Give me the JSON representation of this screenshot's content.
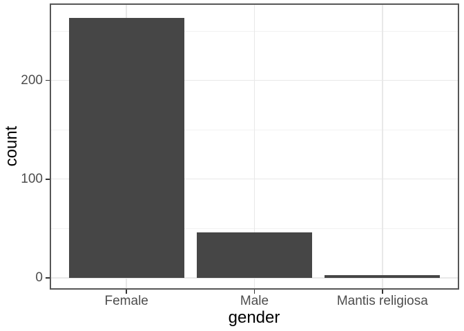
{
  "chart_data": {
    "type": "bar",
    "title": "",
    "xlabel": "gender",
    "ylabel": "count",
    "categories": [
      "Female",
      "Male",
      "Mantis religiosa"
    ],
    "values": [
      263,
      46,
      3
    ],
    "ylim": [
      -12,
      278
    ],
    "yticks": [
      0,
      100,
      200
    ],
    "ytick_labels": [
      "0",
      "100",
      "200"
    ],
    "yticks_minor": [
      50,
      150,
      250
    ],
    "bar_width_fraction": 0.9,
    "grid": true,
    "legend": false,
    "theme": "ggplot2 theme_bw",
    "colors": {
      "bar_fill": "#464646",
      "panel_border": "#565656",
      "grid_major": "#e8e8e8",
      "grid_minor": "#f2f2f2",
      "tick_mark": "#333333",
      "tick_label": "#4d4d4d",
      "axis_title": "#000000",
      "background": "#ffffff"
    }
  }
}
